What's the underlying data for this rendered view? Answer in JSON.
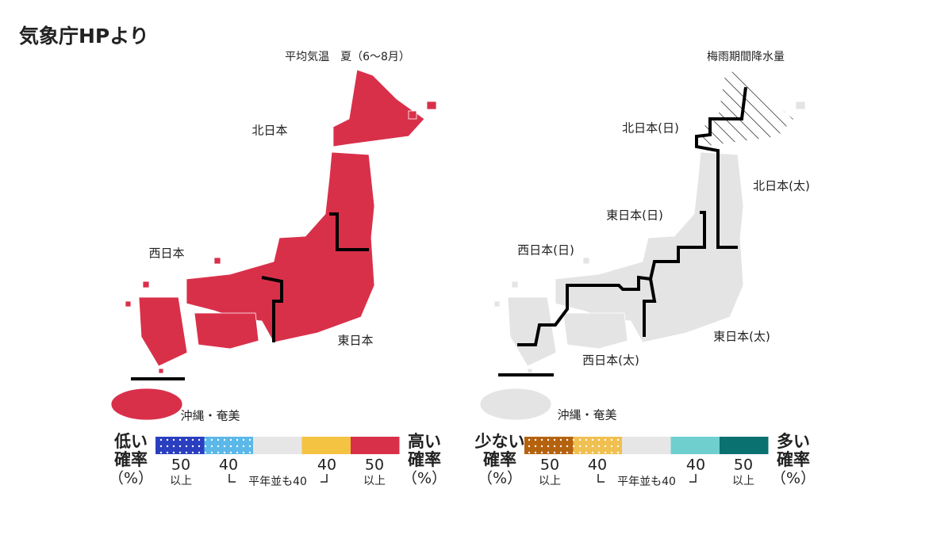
{
  "header": {
    "title": "気象庁HPより"
  },
  "maps": [
    {
      "title": "平均気温　夏（6～8月）",
      "regions": [
        {
          "label": "北日本"
        },
        {
          "label": "東日本"
        },
        {
          "label": "西日本"
        },
        {
          "label": "沖縄・奄美"
        }
      ],
      "legend": {
        "left_label": [
          "低い",
          "確率",
          "（%）"
        ],
        "right_label": [
          "高い",
          "確率",
          "（%）"
        ],
        "numbers": [
          50,
          40,
          40,
          50
        ],
        "above": [
          "以上",
          "以上"
        ],
        "note": "平年並も40"
      }
    },
    {
      "title": "梅雨期間降水量",
      "regions": [
        {
          "label": "北日本(日)"
        },
        {
          "label": "北日本(太)"
        },
        {
          "label": "東日本(日)"
        },
        {
          "label": "西日本(日)"
        },
        {
          "label": "東日本(太)"
        },
        {
          "label": "西日本(太)"
        },
        {
          "label": "沖縄・奄美"
        }
      ],
      "legend": {
        "left_label": [
          "少ない",
          "確率",
          "（%）"
        ],
        "right_label": [
          "多い",
          "確率",
          "（%）"
        ],
        "numbers": [
          50,
          40,
          40,
          50
        ],
        "above": [
          "以上",
          "以上"
        ],
        "note": "平年並も40"
      }
    }
  ]
}
